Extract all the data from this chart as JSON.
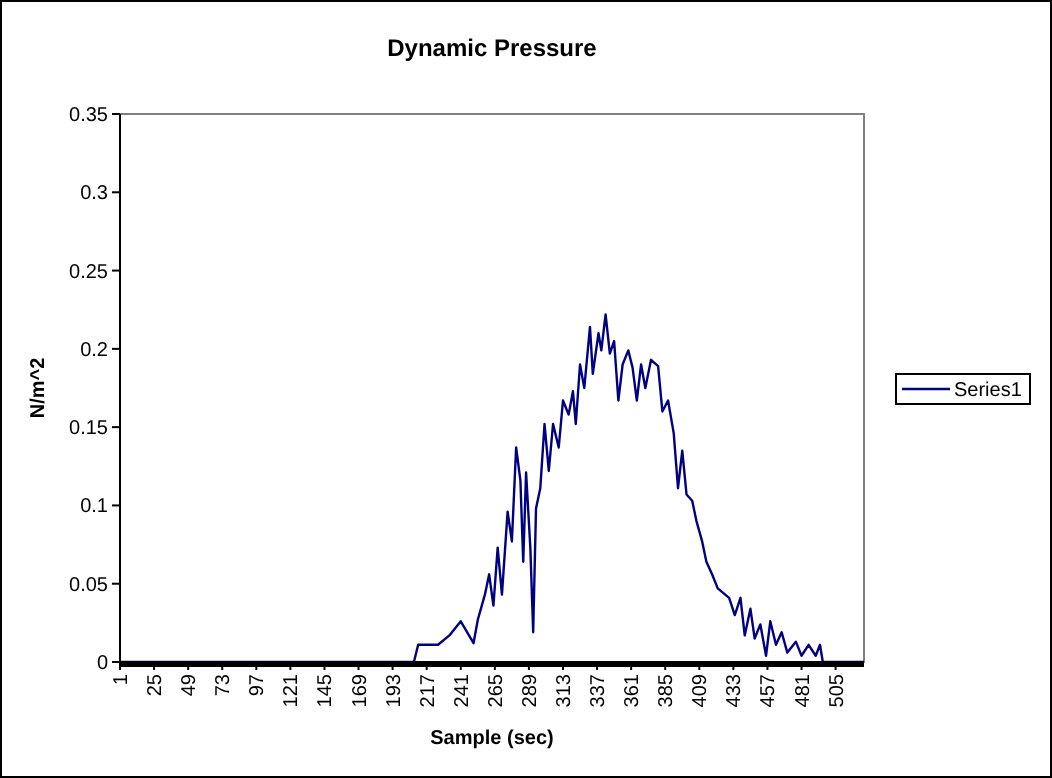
{
  "chart_data": {
    "type": "line",
    "title": "Dynamic Pressure",
    "xlabel": "Sample (sec)",
    "ylabel": "N/m^2",
    "xlim": [
      1,
      525
    ],
    "xticks": [
      1,
      25,
      49,
      73,
      97,
      121,
      145,
      169,
      193,
      217,
      241,
      265,
      289,
      313,
      337,
      361,
      385,
      409,
      433,
      457,
      481,
      505
    ],
    "ylim": [
      0,
      0.35
    ],
    "yticks": [
      0,
      0.05,
      0.1,
      0.15,
      0.2,
      0.25,
      0.3,
      0.35
    ],
    "grid": false,
    "legend": "right",
    "marker": "none",
    "line_style": "solid",
    "series": [
      {
        "name": "Series1",
        "color": "#000080",
        "x": [
          1,
          208,
          211,
          225,
          233,
          241,
          250,
          253,
          258,
          261,
          264,
          267,
          270,
          274,
          277,
          280,
          283,
          285,
          287,
          290,
          292,
          294,
          297,
          300,
          303,
          306,
          310,
          313,
          317,
          320,
          322,
          325,
          328,
          332,
          334,
          338,
          340,
          343,
          346,
          349,
          352,
          355,
          359,
          362,
          365,
          368,
          371,
          375,
          380,
          383,
          387,
          391,
          394,
          397,
          400,
          404,
          407,
          411,
          414,
          418,
          422,
          430,
          434,
          438,
          441,
          445,
          448,
          452,
          456,
          459,
          463,
          467,
          471,
          477,
          481,
          486,
          491,
          494,
          496,
          525
        ],
        "values": [
          0,
          0,
          0.011,
          0.011,
          0.017,
          0.026,
          0.012,
          0.027,
          0.043,
          0.056,
          0.036,
          0.073,
          0.043,
          0.096,
          0.077,
          0.137,
          0.116,
          0.064,
          0.121,
          0.073,
          0.019,
          0.098,
          0.111,
          0.152,
          0.122,
          0.152,
          0.137,
          0.167,
          0.158,
          0.173,
          0.152,
          0.19,
          0.175,
          0.214,
          0.184,
          0.21,
          0.199,
          0.222,
          0.197,
          0.205,
          0.167,
          0.19,
          0.199,
          0.188,
          0.167,
          0.19,
          0.175,
          0.193,
          0.189,
          0.16,
          0.167,
          0.146,
          0.111,
          0.135,
          0.107,
          0.103,
          0.09,
          0.077,
          0.064,
          0.056,
          0.047,
          0.041,
          0.03,
          0.041,
          0.017,
          0.034,
          0.015,
          0.024,
          0.004,
          0.026,
          0.011,
          0.019,
          0.006,
          0.013,
          0.004,
          0.011,
          0.004,
          0.011,
          0,
          0
        ]
      }
    ]
  }
}
